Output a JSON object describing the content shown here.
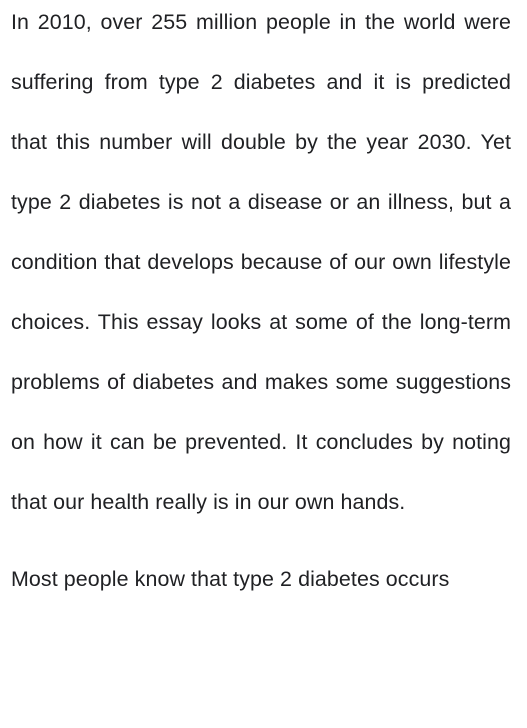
{
  "paragraphs": [
    "In 2010, over 255 million people in the world were suffering from type 2 diabetes and it is predicted that this number will double by the year 2030. Yet type 2 diabetes is not a disease or an illness, but a condition that develops because of our own lifestyle choices. This essay looks at some of the long-term problems of diabetes and makes some suggestions on how it can be prevented. It concludes by noting that our health really is in our own hands.",
    "Most people know that type 2 diabetes occurs"
  ]
}
